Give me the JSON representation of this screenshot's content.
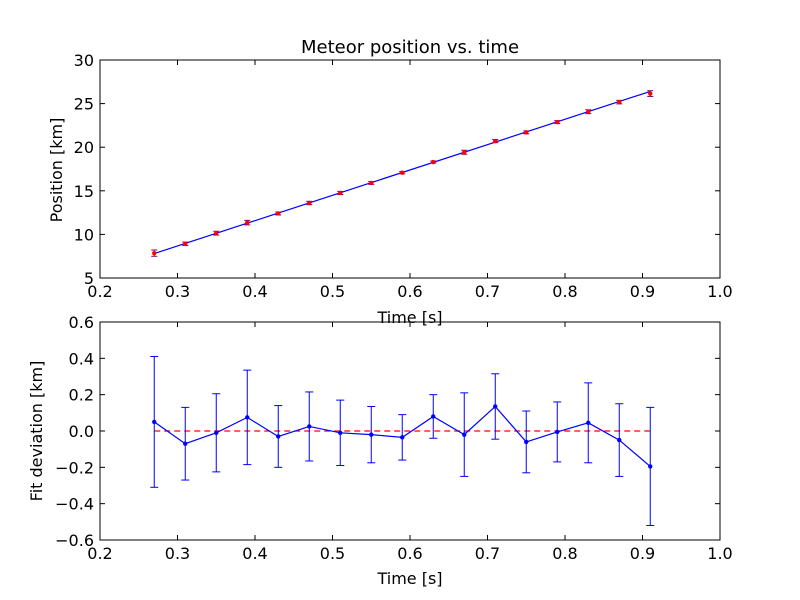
{
  "chart_data": [
    {
      "type": "scatter",
      "title": "Meteor position vs. time",
      "xlabel": "Time [s]",
      "ylabel": "Position [km]",
      "xlim": [
        0.2,
        1.0
      ],
      "ylim": [
        5,
        30
      ],
      "x_ticks": [
        "0.2",
        "0.3",
        "0.4",
        "0.5",
        "0.6",
        "0.7",
        "0.8",
        "0.9",
        "1.0"
      ],
      "y_ticks": [
        "5",
        "10",
        "15",
        "20",
        "25",
        "30"
      ],
      "grid": false,
      "colors": {
        "points": "#ff0000",
        "errorbars": "#800080",
        "fit": "#0000ff"
      },
      "series": [
        {
          "kind": "points-with-errorbars",
          "x": [
            0.27,
            0.31,
            0.35,
            0.39,
            0.43,
            0.47,
            0.51,
            0.55,
            0.59,
            0.63,
            0.67,
            0.71,
            0.75,
            0.79,
            0.83,
            0.87,
            0.91
          ],
          "y": [
            7.85,
            8.92,
            10.14,
            11.35,
            12.4,
            13.6,
            14.75,
            15.9,
            17.08,
            18.3,
            19.42,
            20.7,
            21.7,
            22.88,
            24.07,
            25.17,
            26.15
          ],
          "yerr": [
            0.36,
            0.2,
            0.22,
            0.26,
            0.17,
            0.19,
            0.18,
            0.16,
            0.13,
            0.12,
            0.23,
            0.18,
            0.17,
            0.17,
            0.22,
            0.2,
            0.33
          ]
        },
        {
          "kind": "fit-line",
          "x": [
            0.27,
            0.91
          ],
          "y": [
            7.8,
            26.4
          ]
        }
      ]
    },
    {
      "type": "line",
      "title": "",
      "xlabel": "Time [s]",
      "ylabel": "Fit deviation [km]",
      "xlim": [
        0.2,
        1.0
      ],
      "ylim": [
        -0.6,
        0.6
      ],
      "x_ticks": [
        "0.2",
        "0.3",
        "0.4",
        "0.5",
        "0.6",
        "0.7",
        "0.8",
        "0.9",
        "1.0"
      ],
      "y_ticks": [
        "−0.6",
        "−0.4",
        "−0.2",
        "0.0",
        "0.2",
        "0.4",
        "0.6"
      ],
      "grid": false,
      "colors": {
        "residuals": "#0000ff",
        "zero": "#ff0000"
      },
      "reference_line": {
        "y": 0.0,
        "style": "dashed",
        "x": [
          0.27,
          0.91
        ]
      },
      "series": [
        {
          "kind": "residuals-with-errorbars",
          "x": [
            0.27,
            0.31,
            0.35,
            0.39,
            0.43,
            0.47,
            0.51,
            0.55,
            0.59,
            0.63,
            0.67,
            0.71,
            0.75,
            0.79,
            0.83,
            0.87,
            0.91
          ],
          "y": [
            0.05,
            -0.07,
            -0.01,
            0.075,
            -0.03,
            0.025,
            -0.01,
            -0.02,
            -0.035,
            0.08,
            -0.02,
            0.135,
            -0.06,
            -0.005,
            0.045,
            -0.05,
            -0.195
          ],
          "yerr": [
            0.36,
            0.2,
            0.215,
            0.26,
            0.17,
            0.19,
            0.18,
            0.155,
            0.125,
            0.12,
            0.23,
            0.18,
            0.17,
            0.165,
            0.22,
            0.2,
            0.325
          ]
        }
      ]
    }
  ]
}
